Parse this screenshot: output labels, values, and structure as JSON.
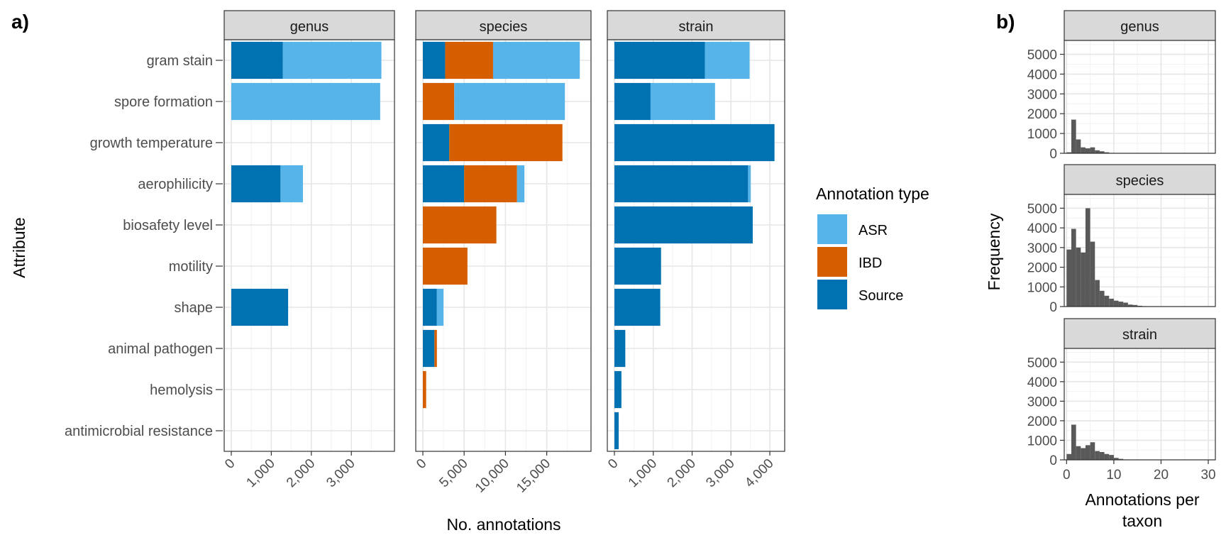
{
  "panel_labels": {
    "a": "a)",
    "b": "b)"
  },
  "colors": {
    "ASR": "#56B4E9",
    "IBD": "#D55E00",
    "Source": "#0072B2",
    "hist": "#595959",
    "strip_bg": "#D9D9D9"
  },
  "chart_data": [
    {
      "type": "bar",
      "orientation": "horizontal",
      "stacked": true,
      "ylabel": "Attribute",
      "xlabel": "No. annotations",
      "categories": [
        "gram stain",
        "spore formation",
        "growth temperature",
        "aerophilicity",
        "biosafety level",
        "motility",
        "shape",
        "animal pathogen",
        "hemolysis",
        "antimicrobial resistance"
      ],
      "legend": {
        "title": "Annotation type",
        "entries": [
          "ASR",
          "IBD",
          "Source"
        ],
        "placement": "right"
      },
      "grid": true,
      "facets": [
        {
          "title": "genus",
          "xlim": [
            0,
            3900
          ],
          "ticks": [
            0,
            1000,
            2000,
            3000
          ],
          "tick_labels": [
            "0",
            "1,000",
            "2,000",
            "3,000"
          ],
          "series": [
            {
              "name": "Source",
              "values": [
                1290,
                0,
                0,
                1230,
                0,
                0,
                1420,
                0,
                0,
                0
              ]
            },
            {
              "name": "IBD",
              "values": [
                0,
                0,
                0,
                0,
                0,
                0,
                0,
                0,
                0,
                0
              ]
            },
            {
              "name": "ASR",
              "values": [
                2460,
                3720,
                0,
                560,
                0,
                0,
                0,
                0,
                0,
                0
              ]
            }
          ]
        },
        {
          "title": "species",
          "xlim": [
            0,
            19500
          ],
          "ticks": [
            0,
            5000,
            10000,
            15000
          ],
          "tick_labels": [
            "0",
            "5,000",
            "10,000",
            "15,000"
          ],
          "series": [
            {
              "name": "Source",
              "values": [
                2700,
                0,
                3200,
                5000,
                0,
                0,
                1700,
                1400,
                0,
                0
              ]
            },
            {
              "name": "IBD",
              "values": [
                5800,
                3800,
                13700,
                6400,
                8900,
                5400,
                0,
                300,
                400,
                0
              ]
            },
            {
              "name": "ASR",
              "values": [
                10500,
                13400,
                0,
                900,
                0,
                0,
                800,
                0,
                0,
                0
              ]
            }
          ]
        },
        {
          "title": "strain",
          "xlim": [
            0,
            4200
          ],
          "ticks": [
            0,
            1000,
            2000,
            3000,
            4000
          ],
          "tick_labels": [
            "0",
            "1,000",
            "2,000",
            "3,000",
            "4,000"
          ],
          "series": [
            {
              "name": "Source",
              "values": [
                2330,
                930,
                4120,
                3440,
                3560,
                1200,
                1180,
                280,
                180,
                110
              ]
            },
            {
              "name": "IBD",
              "values": [
                0,
                0,
                0,
                0,
                0,
                0,
                0,
                0,
                0,
                0
              ]
            },
            {
              "name": "ASR",
              "values": [
                1150,
                1660,
                0,
                70,
                0,
                0,
                0,
                0,
                0,
                0
              ]
            }
          ]
        }
      ]
    },
    {
      "type": "bar",
      "subtype": "histogram",
      "ylabel": "Frequency",
      "xlabel": "Annotations per taxon",
      "xlim": [
        -0.5,
        31.5
      ],
      "ylim": [
        0,
        5700
      ],
      "xticks": [
        0,
        10,
        20,
        30
      ],
      "yticks": [
        0,
        1000,
        2000,
        3000,
        4000,
        5000
      ],
      "bin_width": 1,
      "bin_starts": [
        0,
        1,
        2,
        3,
        4,
        5,
        6,
        7,
        8,
        9,
        10,
        11,
        12,
        13,
        14,
        15,
        16
      ],
      "grid": true,
      "facets": [
        {
          "title": "genus",
          "values": [
            50,
            1700,
            700,
            300,
            250,
            300,
            150,
            100,
            50,
            20,
            0,
            0,
            0,
            0,
            0,
            0,
            0
          ]
        },
        {
          "title": "species",
          "values": [
            2900,
            3950,
            3000,
            2750,
            5000,
            3300,
            1350,
            800,
            550,
            400,
            300,
            250,
            200,
            100,
            80,
            40,
            20
          ]
        },
        {
          "title": "strain",
          "values": [
            300,
            1800,
            700,
            600,
            750,
            900,
            450,
            400,
            300,
            250,
            100,
            50,
            20,
            0,
            0,
            0,
            0
          ]
        }
      ]
    }
  ]
}
